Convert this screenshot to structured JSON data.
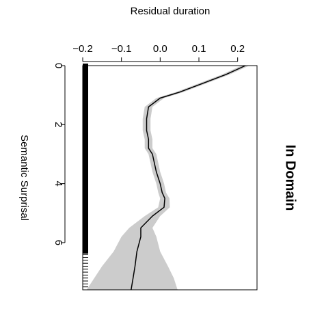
{
  "chart_data": {
    "type": "line",
    "orientation": "rotated",
    "title": "In Domain",
    "xlabel": "Residual duration",
    "ylabel": "Semantic Surprisal",
    "x_ticks": [
      -0.2,
      -0.1,
      0.0,
      0.1,
      0.2
    ],
    "y_ticks": [
      0,
      2,
      4,
      6
    ],
    "xlim": [
      -0.2,
      0.25
    ],
    "ylim": [
      0,
      7.6
    ],
    "grid": false,
    "legend": "none",
    "colors": {
      "line": "#000000",
      "band": "#cccccc",
      "rug": "#000000"
    },
    "series": [
      {
        "x": [
          0.22,
          0.17,
          0.11,
          0.05,
          0.0,
          -0.03,
          -0.035,
          -0.035,
          -0.03,
          -0.03,
          -0.02,
          -0.015,
          -0.01,
          -0.005,
          0.0,
          0.005,
          0.012,
          0.01,
          -0.02,
          -0.05,
          -0.05,
          -0.06,
          -0.065,
          -0.07,
          -0.075
        ],
        "y": [
          0.0,
          0.3,
          0.6,
          0.9,
          1.1,
          1.4,
          1.8,
          2.2,
          2.5,
          2.8,
          3.0,
          3.3,
          3.6,
          3.8,
          4.0,
          4.3,
          4.5,
          4.8,
          5.1,
          5.5,
          5.8,
          6.3,
          6.8,
          7.2,
          7.6
        ],
        "lower": [
          0.21,
          0.16,
          0.1,
          0.04,
          -0.01,
          -0.04,
          -0.045,
          -0.045,
          -0.04,
          -0.04,
          -0.03,
          -0.025,
          -0.02,
          -0.015,
          -0.01,
          -0.005,
          0.0,
          -0.005,
          -0.04,
          -0.08,
          -0.1,
          -0.12,
          -0.15,
          -0.17,
          -0.19
        ],
        "upper": [
          0.23,
          0.18,
          0.12,
          0.06,
          0.01,
          -0.02,
          -0.025,
          -0.025,
          -0.02,
          -0.02,
          -0.01,
          -0.005,
          0.0,
          0.005,
          0.01,
          0.015,
          0.024,
          0.025,
          0.0,
          -0.02,
          -0.01,
          0.0,
          0.02,
          0.035,
          0.045
        ]
      }
    ],
    "rug_y": [
      0,
      0.1,
      0.2,
      0.3,
      0.4,
      0.5,
      0.6,
      0.7,
      0.8,
      0.9,
      1.0,
      1.1,
      1.2,
      1.3,
      1.4,
      1.5,
      1.6,
      1.7,
      1.8,
      1.9,
      2.0,
      2.1,
      2.2,
      2.3,
      2.4,
      2.5,
      2.6,
      2.7,
      2.8,
      2.9,
      3.0,
      3.1,
      3.2,
      3.3,
      3.4,
      3.5,
      3.6,
      3.7,
      3.8,
      3.9,
      4.0,
      4.1,
      4.2,
      4.3,
      4.4,
      4.5,
      4.6,
      4.7,
      4.8,
      4.9,
      5.0,
      5.1,
      5.2,
      5.3,
      5.4,
      5.5,
      5.6,
      5.7,
      5.8,
      5.9,
      6.0,
      6.1,
      6.2,
      6.3,
      6.4,
      6.5,
      6.6,
      6.7,
      6.8,
      6.9,
      7.0,
      7.1,
      7.2,
      7.3,
      7.4,
      7.5
    ]
  }
}
